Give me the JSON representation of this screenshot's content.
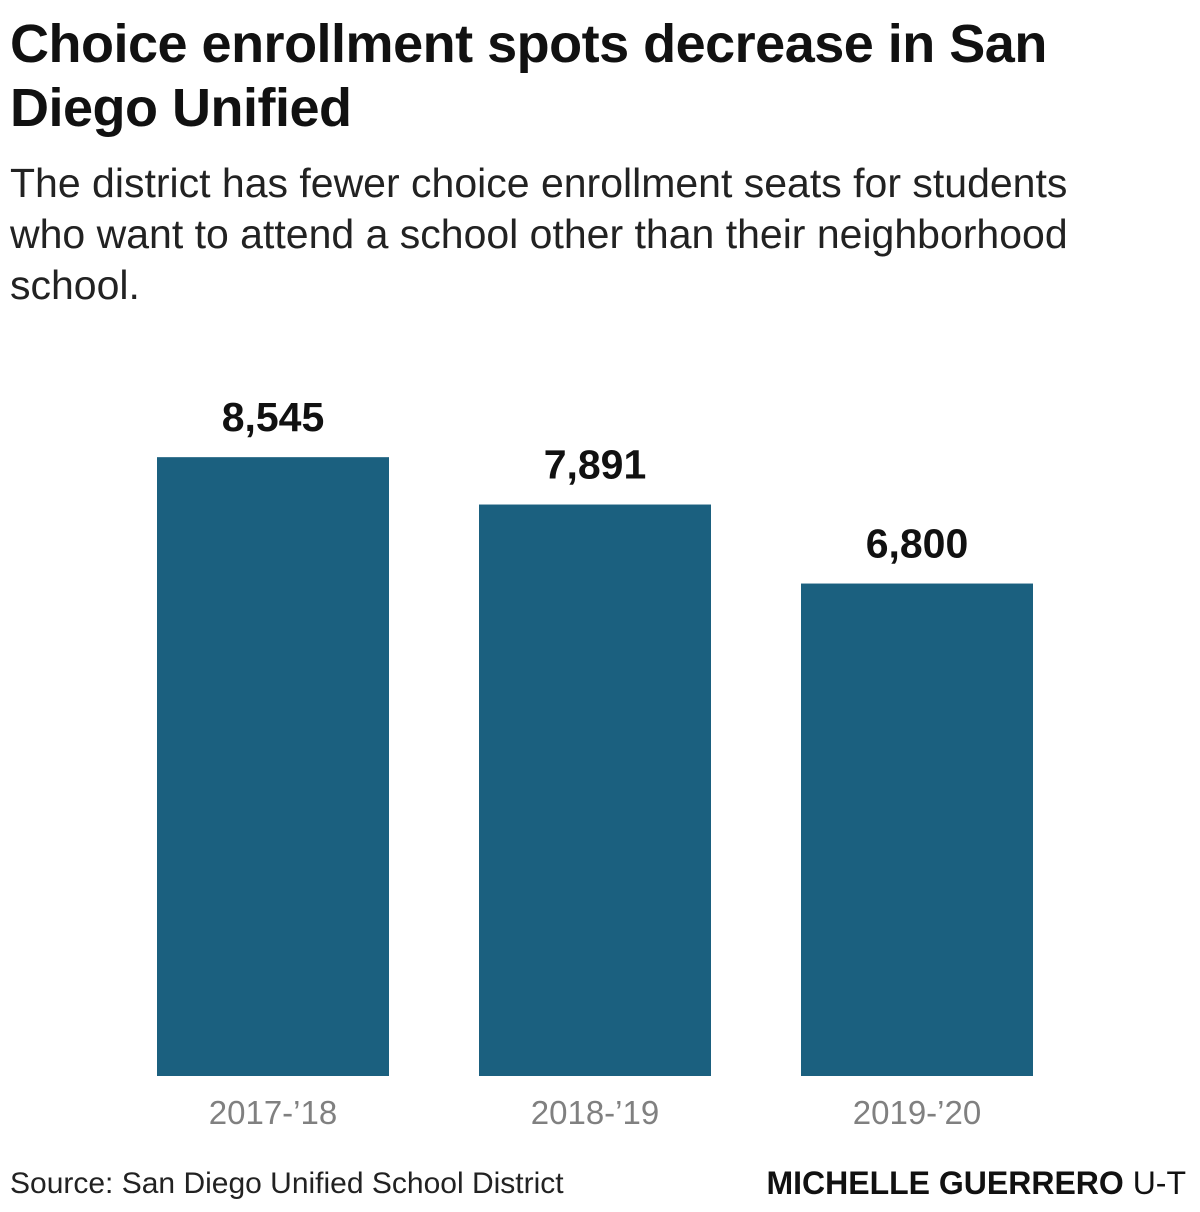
{
  "title": "Choice enrollment spots decrease in San Diego Unified",
  "subtitle": "The district has fewer choice enrollment seats for students who want to attend a school other than their neighborhood school.",
  "source": "Source: San Diego Unified School District",
  "credit": {
    "name": "MICHELLE GUERRERO",
    "org": " U-T"
  },
  "colors": {
    "bar": "#1b607f",
    "value_label": "#111111",
    "tick_label": "#808080"
  },
  "chart_data": {
    "type": "bar",
    "categories": [
      "2017-’18",
      "2018-’19",
      "2019-’20"
    ],
    "values": [
      8545,
      7891,
      6800
    ],
    "value_labels": [
      "8,545",
      "7,891",
      "6,800"
    ],
    "xlabel": "",
    "ylabel": "",
    "ylim": [
      0,
      9500
    ],
    "grid": false,
    "legend": "none"
  }
}
